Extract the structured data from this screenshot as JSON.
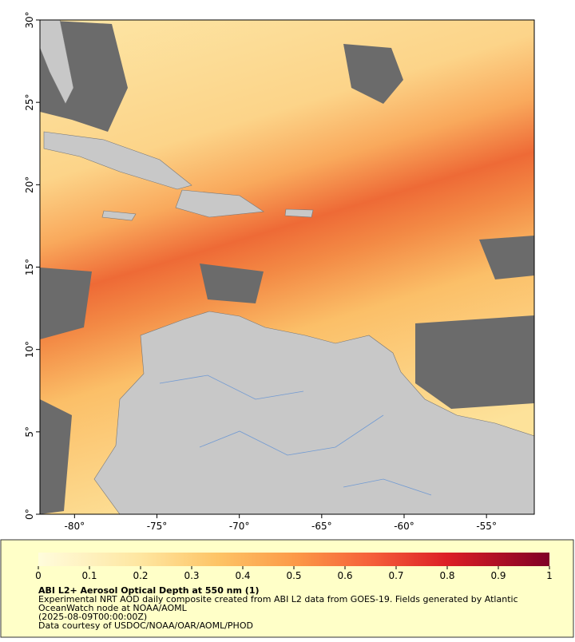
{
  "map": {
    "xlim": [
      -82.1,
      -52.1
    ],
    "ylim": [
      0,
      30
    ],
    "xticks": [
      {
        "value": -80,
        "label": "-80°"
      },
      {
        "value": -75,
        "label": "-75°"
      },
      {
        "value": -70,
        "label": "-70°"
      },
      {
        "value": -65,
        "label": "-65°"
      },
      {
        "value": -60,
        "label": "-60°"
      },
      {
        "value": -55,
        "label": "-55°"
      }
    ],
    "yticks": [
      {
        "value": 0,
        "label": "0°"
      },
      {
        "value": 5,
        "label": "5°"
      },
      {
        "value": 10,
        "label": "10°"
      },
      {
        "value": 15,
        "label": "15°"
      },
      {
        "value": 20,
        "label": "20°"
      },
      {
        "value": 25,
        "label": "25°"
      },
      {
        "value": 30,
        "label": "30°"
      }
    ]
  },
  "colorbar": {
    "lim": [
      0,
      1
    ],
    "ticks": [
      0,
      0.1,
      0.2,
      0.3,
      0.4,
      0.5,
      0.6,
      0.7,
      0.8,
      0.9,
      1
    ]
  },
  "caption": {
    "title": "ABI L2+ Aerosol Optical Depth at 550 nm (1)",
    "lines": [
      "Experimental NRT AOD daily composite created from ABI L2 data from GOES-19. Fields generated by Atlantic",
      "OceanWatch node at NOAA/AOML",
      "(2025-08-09T00:00:00Z)",
      "Data courtesy of USDOC/NOAA/OAR/AOML/PHOD"
    ]
  }
}
